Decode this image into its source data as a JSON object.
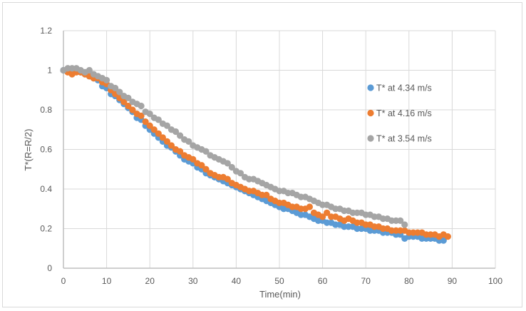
{
  "chart_data": {
    "type": "scatter",
    "title": "",
    "xlabel": "Time(min)",
    "ylabel": "T*(R=R/2)",
    "xlim": [
      0,
      100
    ],
    "ylim": [
      0,
      1.2
    ],
    "xticks": [
      0,
      10,
      20,
      30,
      40,
      50,
      60,
      70,
      80,
      90,
      100
    ],
    "yticks": [
      0,
      0.2,
      0.4,
      0.6,
      0.8,
      1,
      1.2
    ],
    "grid": true,
    "legend_position": "right",
    "series": [
      {
        "name": "T* at 4.34 m/s",
        "color": "#5b9bd5",
        "x_start": 0,
        "values": [
          1.0,
          1.0,
          0.99,
          1.0,
          0.99,
          0.98,
          0.97,
          0.96,
          0.95,
          0.92,
          0.91,
          0.88,
          0.87,
          0.85,
          0.83,
          0.81,
          0.79,
          0.76,
          0.75,
          0.72,
          0.7,
          0.68,
          0.66,
          0.64,
          0.62,
          0.61,
          0.59,
          0.57,
          0.55,
          0.54,
          0.53,
          0.51,
          0.5,
          0.48,
          0.47,
          0.46,
          0.45,
          0.44,
          0.43,
          0.42,
          0.41,
          0.4,
          0.39,
          0.38,
          0.37,
          0.36,
          0.35,
          0.34,
          0.33,
          0.32,
          0.31,
          0.3,
          0.3,
          0.29,
          0.28,
          0.27,
          0.27,
          0.26,
          0.25,
          0.24,
          0.24,
          0.23,
          0.23,
          0.22,
          0.22,
          0.21,
          0.21,
          0.21,
          0.2,
          0.2,
          0.2,
          0.19,
          0.19,
          0.19,
          0.18,
          0.18,
          0.18,
          0.17,
          0.17,
          0.15,
          0.16,
          0.16,
          0.16,
          0.15,
          0.15,
          0.15,
          0.15,
          0.14,
          0.14
        ]
      },
      {
        "name": "T* at 4.16 m/s",
        "color": "#ed7d31",
        "x_start": 1,
        "values": [
          0.99,
          0.98,
          0.99,
          0.99,
          0.98,
          0.97,
          0.96,
          0.96,
          0.94,
          0.93,
          0.9,
          0.88,
          0.86,
          0.84,
          0.82,
          0.8,
          0.78,
          0.77,
          0.74,
          0.72,
          0.7,
          0.68,
          0.66,
          0.64,
          0.62,
          0.6,
          0.59,
          0.57,
          0.56,
          0.55,
          0.53,
          0.52,
          0.5,
          0.48,
          0.47,
          0.46,
          0.46,
          0.45,
          0.43,
          0.42,
          0.41,
          0.4,
          0.39,
          0.39,
          0.38,
          0.37,
          0.37,
          0.35,
          0.34,
          0.33,
          0.33,
          0.32,
          0.31,
          0.31,
          0.3,
          0.3,
          0.31,
          0.28,
          0.27,
          0.26,
          0.28,
          0.26,
          0.26,
          0.25,
          0.24,
          0.25,
          0.24,
          0.23,
          0.23,
          0.22,
          0.22,
          0.21,
          0.21,
          0.2,
          0.2,
          0.19,
          0.19,
          0.19,
          0.19,
          0.18,
          0.18,
          0.18,
          0.18,
          0.17,
          0.17,
          0.17,
          0.16,
          0.17,
          0.16
        ]
      },
      {
        "name": "T* at 3.54 m/s",
        "color": "#a5a5a5",
        "x_start": 0,
        "values": [
          1.0,
          1.01,
          1.01,
          1.01,
          1.0,
          0.99,
          1.0,
          0.98,
          0.97,
          0.96,
          0.95,
          0.92,
          0.91,
          0.89,
          0.87,
          0.86,
          0.84,
          0.83,
          0.82,
          0.79,
          0.78,
          0.76,
          0.75,
          0.73,
          0.72,
          0.7,
          0.69,
          0.67,
          0.65,
          0.64,
          0.62,
          0.61,
          0.6,
          0.59,
          0.57,
          0.56,
          0.55,
          0.54,
          0.53,
          0.51,
          0.49,
          0.48,
          0.46,
          0.45,
          0.45,
          0.44,
          0.43,
          0.42,
          0.41,
          0.4,
          0.39,
          0.39,
          0.38,
          0.38,
          0.37,
          0.36,
          0.36,
          0.35,
          0.34,
          0.33,
          0.32,
          0.32,
          0.31,
          0.3,
          0.3,
          0.29,
          0.29,
          0.28,
          0.28,
          0.28,
          0.27,
          0.27,
          0.26,
          0.26,
          0.25,
          0.25,
          0.24,
          0.24,
          0.24,
          0.22
        ]
      }
    ]
  }
}
